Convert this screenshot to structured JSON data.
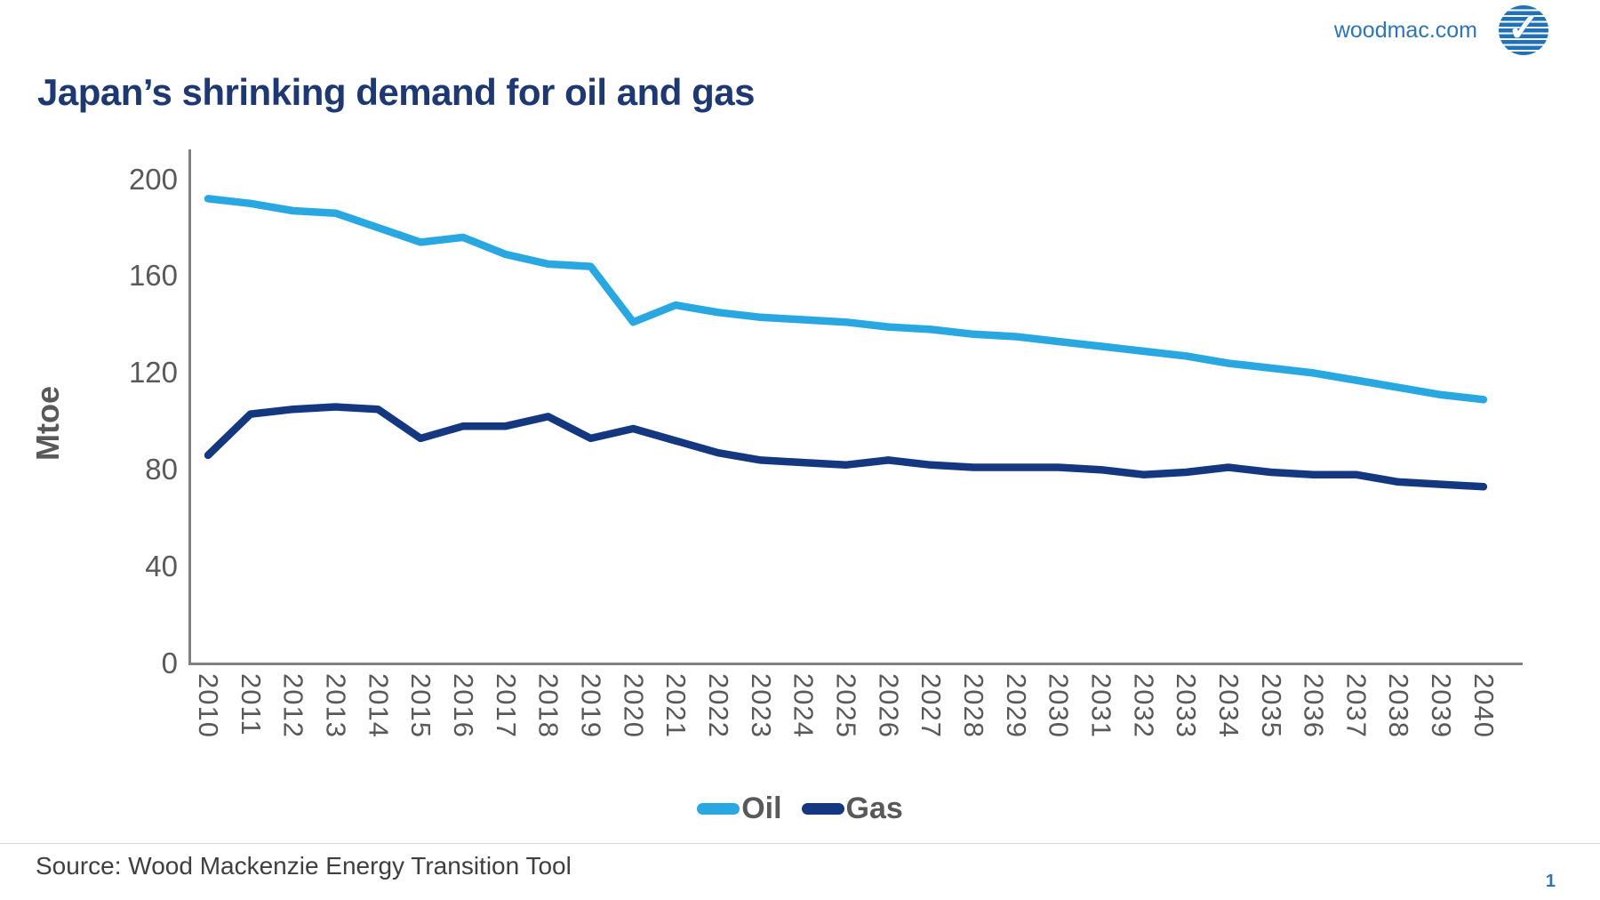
{
  "header": {
    "site": "woodmac.com",
    "logo_icon": "woodmac-striped-globe-check"
  },
  "title": "Japan’s shrinking demand for oil and gas",
  "chart_data": {
    "type": "line",
    "title": "Japan’s shrinking demand for oil and gas",
    "x": [
      2010,
      2011,
      2012,
      2013,
      2014,
      2015,
      2016,
      2017,
      2018,
      2019,
      2020,
      2021,
      2022,
      2023,
      2024,
      2025,
      2026,
      2027,
      2028,
      2029,
      2030,
      2031,
      2032,
      2033,
      2034,
      2035,
      2036,
      2037,
      2038,
      2039,
      2040
    ],
    "series": [
      {
        "name": "Oil",
        "color": "#28A7E0",
        "values": [
          192,
          190,
          187,
          186,
          180,
          174,
          176,
          169,
          165,
          164,
          141,
          148,
          145,
          143,
          142,
          141,
          139,
          138,
          136,
          135,
          133,
          131,
          129,
          127,
          124,
          122,
          120,
          117,
          114,
          111,
          109
        ]
      },
      {
        "name": "Gas",
        "color": "#14387F",
        "values": [
          86,
          103,
          105,
          106,
          105,
          93,
          98,
          98,
          102,
          93,
          97,
          92,
          87,
          84,
          83,
          82,
          84,
          82,
          81,
          81,
          81,
          80,
          78,
          79,
          81,
          79,
          78,
          78,
          75,
          74,
          73
        ]
      }
    ],
    "xlabel": "",
    "ylabel": "Mtoe",
    "ylim": [
      0,
      200
    ],
    "yticks": [
      0,
      40,
      80,
      120,
      160,
      200
    ],
    "grid": false,
    "legend_position": "bottom-center"
  },
  "footer": {
    "source": "Source: Wood Mackenzie Energy Transition Tool",
    "page_number": "1"
  }
}
